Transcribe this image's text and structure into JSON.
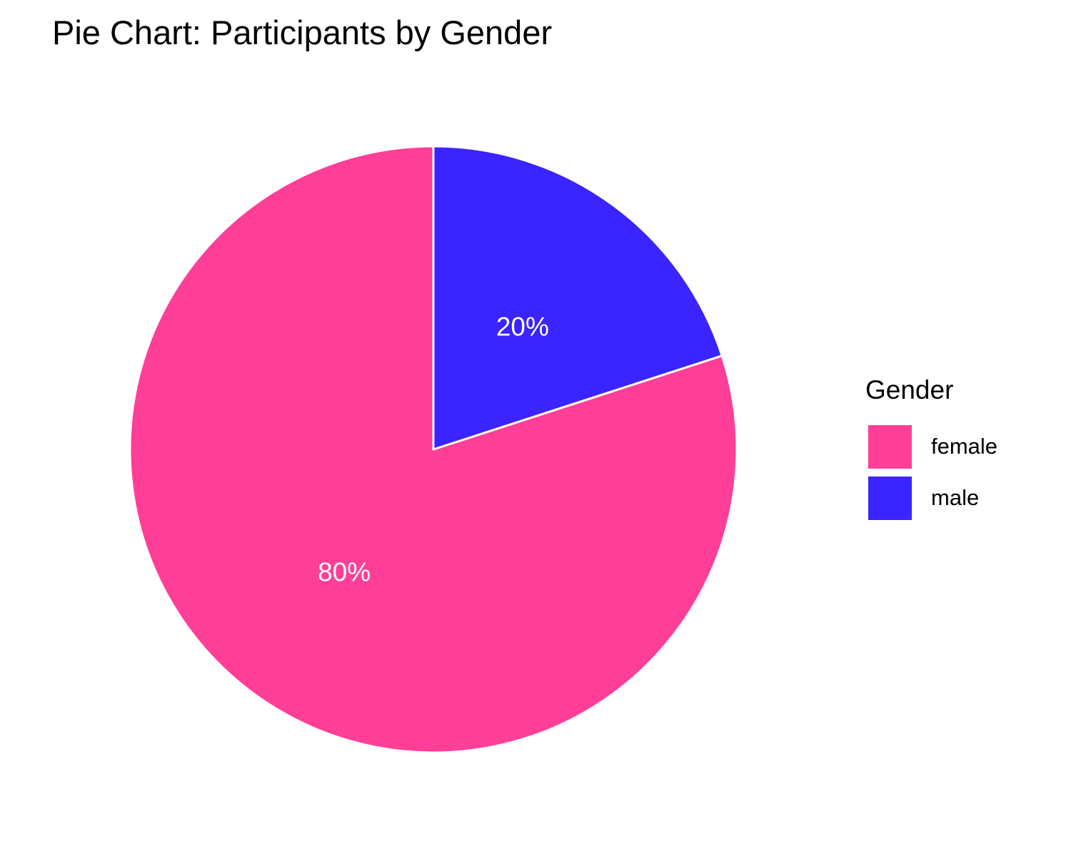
{
  "chart_data": {
    "type": "pie",
    "title": "Pie Chart: Participants by Gender",
    "legend_title": "Gender",
    "legend_position": "right",
    "slices": [
      {
        "label": "female",
        "value": 80,
        "display": "80%",
        "color": "#FF3E98"
      },
      {
        "label": "male",
        "value": 20,
        "display": "20%",
        "color": "#3A24FF"
      }
    ],
    "label_color": "#FFFFFF",
    "slice_border_color": "#FFFFFF"
  }
}
